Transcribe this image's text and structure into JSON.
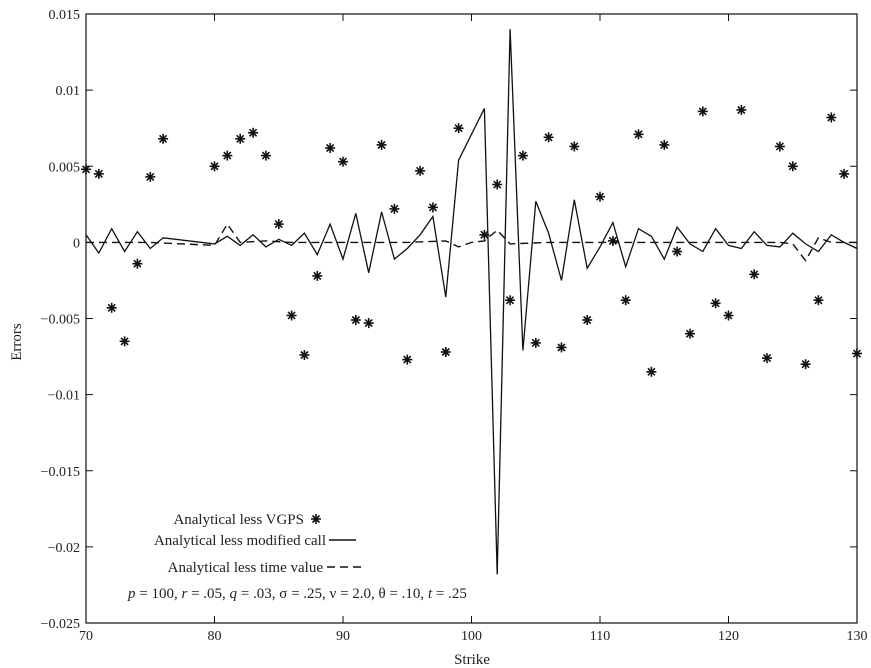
{
  "chart_data": {
    "type": "line",
    "xlabel": "Strike",
    "ylabel": "Errors",
    "xlim": [
      70,
      130
    ],
    "ylim": [
      -0.025,
      0.015
    ],
    "xticks": [
      "70",
      "80",
      "90",
      "100",
      "110",
      "120",
      "130"
    ],
    "yticks": [
      "0.015",
      "0.01",
      "0.005",
      "0",
      "−0.005",
      "−0.01",
      "−0.015",
      "−0.02",
      "−0.025"
    ],
    "grid": false,
    "legend_position": "bottom-left",
    "annotation": "p = 100, r = .05, q = .03, σ = .25, ν = 2.0, θ = .10, t = .25",
    "series": [
      {
        "name": "Analytical less VGPS",
        "style": "asterisk",
        "color": "#111111",
        "x": [
          70,
          71,
          72,
          73,
          74,
          75,
          76,
          80,
          81,
          82,
          83,
          84,
          85,
          86,
          87,
          88,
          89,
          90,
          91,
          92,
          93,
          94,
          95,
          96,
          97,
          98,
          99,
          101,
          102,
          103,
          104,
          105,
          106,
          107,
          108,
          109,
          110,
          111,
          112,
          113,
          114,
          115,
          116,
          117,
          118,
          119,
          120,
          121,
          122,
          123,
          124,
          125,
          126,
          127,
          128,
          129,
          130
        ],
        "y": [
          0.0048,
          0.0045,
          -0.0043,
          -0.0065,
          -0.0014,
          0.0043,
          0.0068,
          0.005,
          0.0057,
          0.0068,
          0.0072,
          0.0057,
          0.0012,
          -0.0048,
          -0.0074,
          -0.0022,
          0.0062,
          0.0053,
          -0.0051,
          -0.0053,
          0.0064,
          0.0022,
          -0.0077,
          0.0047,
          0.0023,
          -0.0072,
          0.0075,
          0.0005,
          0.0038,
          -0.0038,
          0.0057,
          -0.0066,
          0.0069,
          -0.0069,
          0.0063,
          -0.0051,
          0.003,
          0.0001,
          -0.0038,
          0.0071,
          -0.0085,
          0.0064,
          -0.0006,
          -0.006,
          0.0086,
          -0.004,
          -0.0048,
          0.0087,
          -0.0021,
          -0.0076,
          0.0063,
          0.005,
          -0.008,
          -0.0038,
          0.0082,
          0.0045,
          -0.0073
        ]
      },
      {
        "name": "Analytical less modified call",
        "style": "solid",
        "color": "#111111",
        "x": [
          70,
          71,
          72,
          73,
          74,
          75,
          76,
          80,
          81,
          82,
          83,
          84,
          85,
          86,
          87,
          88,
          89,
          90,
          91,
          92,
          93,
          94,
          95,
          96,
          97,
          98,
          99,
          101,
          102,
          103,
          104,
          105,
          106,
          107,
          108,
          109,
          110,
          111,
          112,
          113,
          114,
          115,
          116,
          117,
          118,
          119,
          120,
          121,
          122,
          123,
          124,
          125,
          126,
          127,
          128,
          129,
          130
        ],
        "y": [
          0.0005,
          -0.0007,
          0.0009,
          -0.0006,
          0.0007,
          -0.0004,
          0.0003,
          -0.0001,
          0.0004,
          -0.0002,
          0.0005,
          -0.0003,
          0.0002,
          -0.0002,
          0.0006,
          -0.0008,
          0.0012,
          -0.0011,
          0.0019,
          -0.002,
          0.002,
          -0.0011,
          -0.0004,
          0.0005,
          0.0017,
          -0.0036,
          0.0054,
          0.0088,
          -0.0218,
          0.014,
          -0.0071,
          0.0027,
          0.0006,
          -0.0025,
          0.0028,
          -0.0017,
          -0.0003,
          0.0013,
          -0.0016,
          0.0009,
          0.0004,
          -0.0011,
          0.001,
          -0.0001,
          -0.0006,
          0.0009,
          -0.0002,
          -0.0004,
          0.0007,
          -0.0002,
          -0.0003,
          0.0006,
          -0.0001,
          -0.0006,
          0.0005,
          0,
          -0.0004
        ]
      },
      {
        "name": "Analytical less time value",
        "style": "dashed",
        "color": "#111111",
        "x": [
          70,
          75,
          80,
          81,
          82,
          84,
          86,
          90,
          95,
          98,
          99,
          100,
          101,
          102,
          103,
          106,
          110,
          115,
          120,
          124,
          125,
          126,
          127,
          128,
          130
        ],
        "y": [
          0,
          0,
          -0.0002,
          0.0012,
          0,
          0.0001,
          0,
          0,
          0,
          0.0001,
          -0.0003,
          0,
          0.0001,
          0.0008,
          -0.0001,
          0,
          0,
          0,
          0,
          0,
          -0.0001,
          -0.0012,
          0.0003,
          0,
          0
        ]
      }
    ]
  }
}
